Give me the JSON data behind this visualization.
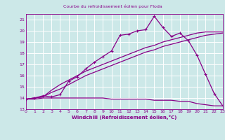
{
  "title": "Courbe du refroidissement éolien pour Floda",
  "xlabel": "Windchill (Refroidissement éolien,°C)",
  "bg_color": "#cce8e8",
  "grid_color": "#ffffff",
  "line_color": "#880088",
  "xmin": 0,
  "xmax": 23,
  "ymin": 13,
  "ymax": 21.5,
  "yticks": [
    13,
    14,
    15,
    16,
    17,
    18,
    19,
    20,
    21
  ],
  "xticks": [
    0,
    1,
    2,
    3,
    4,
    5,
    6,
    7,
    8,
    9,
    10,
    11,
    12,
    13,
    14,
    15,
    16,
    17,
    18,
    19,
    20,
    21,
    22,
    23
  ],
  "series1_x": [
    0,
    1,
    2,
    3,
    4,
    5,
    6,
    7,
    8,
    9,
    10,
    11,
    12,
    13,
    14,
    15,
    16,
    17,
    18,
    19,
    20,
    21,
    22,
    23
  ],
  "series1_y": [
    13.9,
    13.9,
    14.0,
    14.0,
    14.0,
    14.0,
    14.0,
    14.0,
    14.0,
    14.0,
    13.9,
    13.9,
    13.9,
    13.9,
    13.9,
    13.8,
    13.8,
    13.8,
    13.7,
    13.7,
    13.5,
    13.4,
    13.3,
    13.3
  ],
  "series2_x": [
    0,
    1,
    2,
    3,
    4,
    5,
    6,
    7,
    8,
    9,
    10,
    11,
    12,
    13,
    14,
    15,
    16,
    17,
    18,
    19,
    20,
    21,
    22,
    23
  ],
  "series2_y": [
    13.9,
    14.0,
    14.1,
    14.5,
    14.8,
    15.2,
    15.6,
    16.0,
    16.3,
    16.6,
    16.9,
    17.2,
    17.5,
    17.8,
    18.1,
    18.3,
    18.6,
    18.8,
    19.0,
    19.2,
    19.4,
    19.6,
    19.7,
    19.8
  ],
  "series3_x": [
    0,
    1,
    2,
    3,
    4,
    5,
    6,
    7,
    8,
    9,
    10,
    11,
    12,
    13,
    14,
    15,
    16,
    17,
    18,
    19,
    20,
    21,
    22,
    23
  ],
  "series3_y": [
    13.9,
    14.0,
    14.1,
    14.7,
    15.2,
    15.6,
    16.0,
    16.4,
    16.7,
    17.0,
    17.3,
    17.6,
    17.9,
    18.2,
    18.5,
    18.7,
    19.0,
    19.2,
    19.4,
    19.6,
    19.8,
    19.9,
    19.9,
    19.9
  ],
  "series4_x": [
    0,
    1,
    2,
    3,
    4,
    5,
    6,
    7,
    8,
    9,
    10,
    11,
    12,
    13,
    14,
    15,
    16,
    17,
    18,
    19,
    20,
    21,
    22,
    23
  ],
  "series4_y": [
    13.9,
    14.0,
    14.2,
    14.1,
    14.3,
    15.5,
    15.9,
    16.6,
    17.2,
    17.7,
    18.2,
    19.6,
    19.7,
    20.0,
    20.1,
    21.3,
    20.3,
    19.5,
    19.8,
    19.1,
    17.8,
    16.1,
    14.4,
    13.3
  ]
}
